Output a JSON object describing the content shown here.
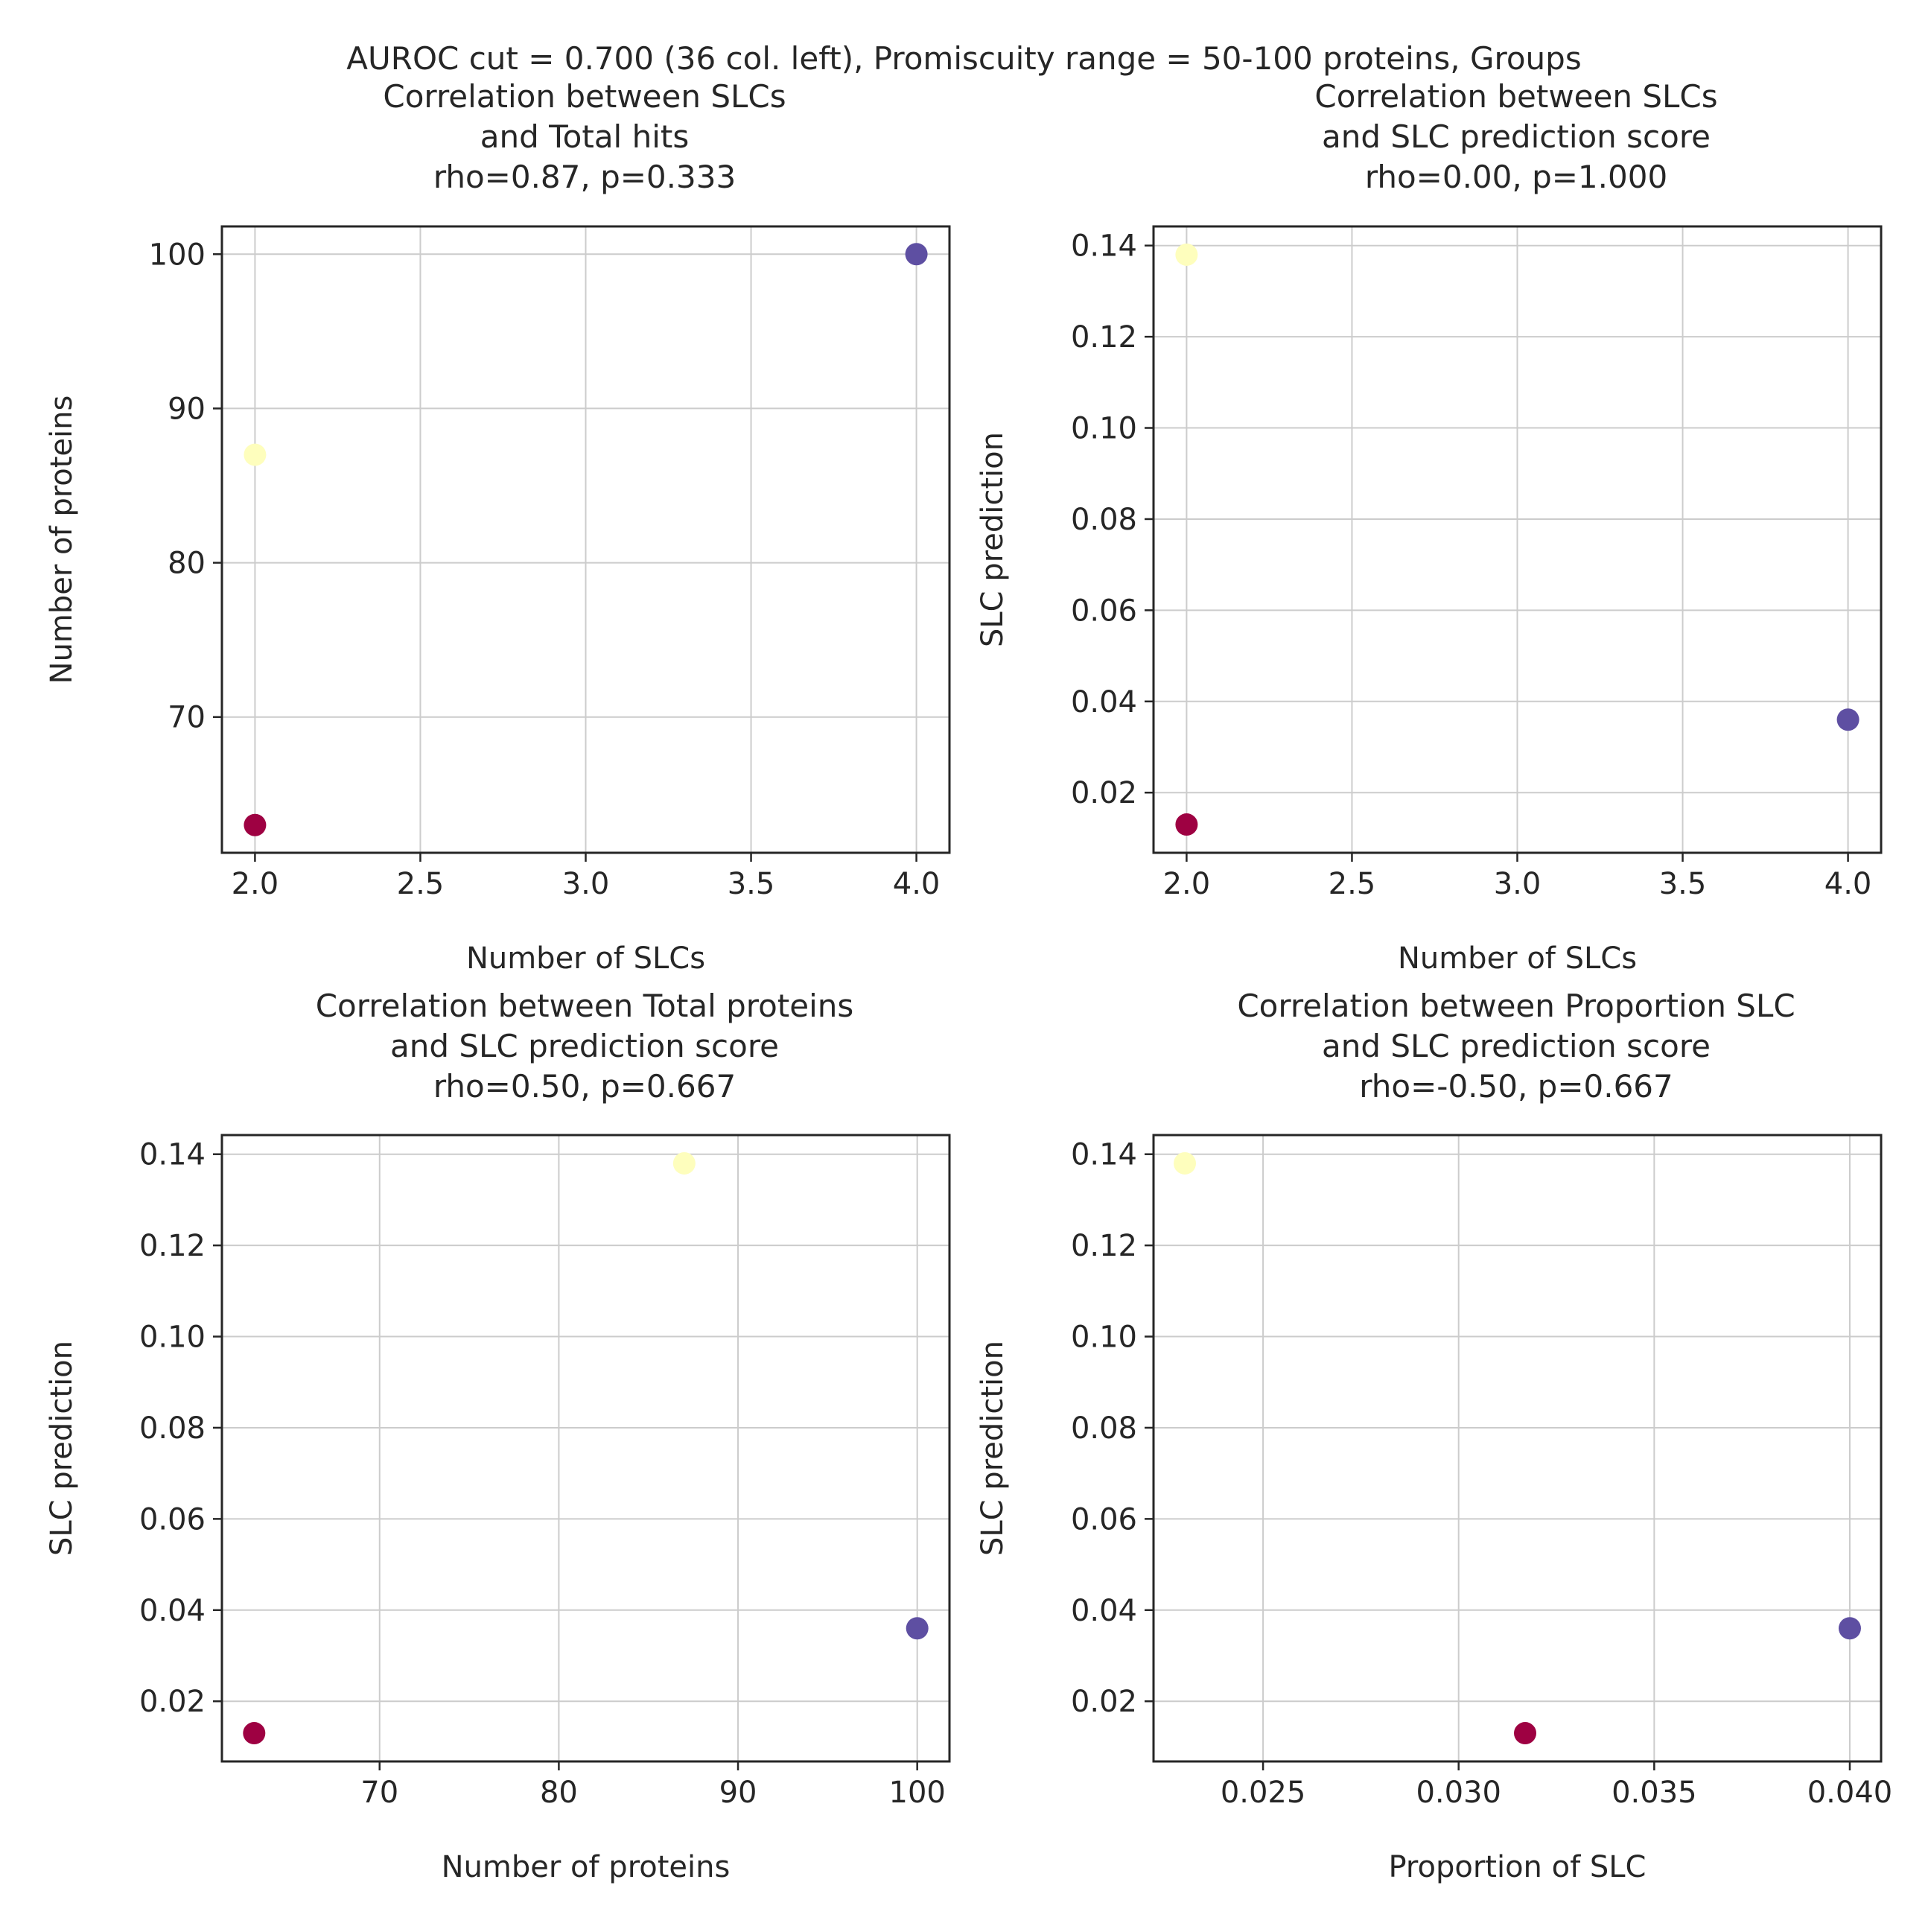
{
  "suptitle": "AUROC cut = 0.700 (36 col. left), Promiscuity range = 50-100 proteins, Groups",
  "colors": {
    "purple": "#5e4fa2",
    "yellow": "#fefebd",
    "crimson": "#9e0142",
    "grid": "#cccccc",
    "spine": "#262626"
  },
  "chart_data": [
    {
      "type": "scatter",
      "title": [
        "Correlation between SLCs",
        "and Total hits",
        "rho=0.87, p=0.333"
      ],
      "xlabel": "Number of SLCs",
      "ylabel": "Number of proteins",
      "xlim": [
        1.9,
        4.1
      ],
      "ylim": [
        61.2,
        101.8
      ],
      "xticks": [
        2.0,
        2.5,
        3.0,
        3.5,
        4.0
      ],
      "xtick_labels": [
        "2.0",
        "2.5",
        "3.0",
        "3.5",
        "4.0"
      ],
      "yticks": [
        70,
        80,
        90,
        100
      ],
      "ytick_labels": [
        "70",
        "80",
        "90",
        "100"
      ],
      "grid": true,
      "points": [
        {
          "x": 4.0,
          "y": 100,
          "color": "#5e4fa2"
        },
        {
          "x": 2.0,
          "y": 87,
          "color": "#fefebd"
        },
        {
          "x": 2.0,
          "y": 63,
          "color": "#9e0142"
        }
      ]
    },
    {
      "type": "scatter",
      "title": [
        "Correlation between SLCs",
        "and SLC prediction score",
        "rho=0.00, p=1.000"
      ],
      "xlabel": "Number of SLCs",
      "ylabel": "SLC prediction",
      "xlim": [
        1.9,
        4.1
      ],
      "ylim": [
        0.0068,
        0.1442
      ],
      "xticks": [
        2.0,
        2.5,
        3.0,
        3.5,
        4.0
      ],
      "xtick_labels": [
        "2.0",
        "2.5",
        "3.0",
        "3.5",
        "4.0"
      ],
      "yticks": [
        0.02,
        0.04,
        0.06,
        0.08,
        0.1,
        0.12,
        0.14
      ],
      "ytick_labels": [
        "0.02",
        "0.04",
        "0.06",
        "0.08",
        "0.10",
        "0.12",
        "0.14"
      ],
      "grid": true,
      "points": [
        {
          "x": 2.0,
          "y": 0.138,
          "color": "#fefebd"
        },
        {
          "x": 4.0,
          "y": 0.036,
          "color": "#5e4fa2"
        },
        {
          "x": 2.0,
          "y": 0.013,
          "color": "#9e0142"
        }
      ]
    },
    {
      "type": "scatter",
      "title": [
        "Correlation between Total proteins",
        "and SLC prediction score",
        "rho=0.50, p=0.667"
      ],
      "xlabel": "Number of proteins",
      "ylabel": "SLC prediction",
      "xlim": [
        61.2,
        101.8
      ],
      "ylim": [
        0.0068,
        0.1442
      ],
      "xticks": [
        70,
        80,
        90,
        100
      ],
      "xtick_labels": [
        "70",
        "80",
        "90",
        "100"
      ],
      "yticks": [
        0.02,
        0.04,
        0.06,
        0.08,
        0.1,
        0.12,
        0.14
      ],
      "ytick_labels": [
        "0.02",
        "0.04",
        "0.06",
        "0.08",
        "0.10",
        "0.12",
        "0.14"
      ],
      "grid": true,
      "points": [
        {
          "x": 87,
          "y": 0.138,
          "color": "#fefebd"
        },
        {
          "x": 100,
          "y": 0.036,
          "color": "#5e4fa2"
        },
        {
          "x": 63,
          "y": 0.013,
          "color": "#9e0142"
        }
      ]
    },
    {
      "type": "scatter",
      "title": [
        "Correlation between Proportion SLC",
        "and SLC prediction score",
        "rho=-0.50, p=0.667"
      ],
      "xlabel": "Proportion of SLC",
      "ylabel": "SLC prediction",
      "xlim": [
        0.0222,
        0.0408
      ],
      "ylim": [
        0.0068,
        0.1442
      ],
      "xticks": [
        0.025,
        0.03,
        0.035,
        0.04
      ],
      "xtick_labels": [
        "0.025",
        "0.030",
        "0.035",
        "0.040"
      ],
      "yticks": [
        0.02,
        0.04,
        0.06,
        0.08,
        0.1,
        0.12,
        0.14
      ],
      "ytick_labels": [
        "0.02",
        "0.04",
        "0.06",
        "0.08",
        "0.10",
        "0.12",
        "0.14"
      ],
      "grid": true,
      "points": [
        {
          "x": 0.023,
          "y": 0.138,
          "color": "#fefebd"
        },
        {
          "x": 0.04,
          "y": 0.036,
          "color": "#5e4fa2"
        },
        {
          "x": 0.0317,
          "y": 0.013,
          "color": "#9e0142"
        }
      ]
    }
  ]
}
